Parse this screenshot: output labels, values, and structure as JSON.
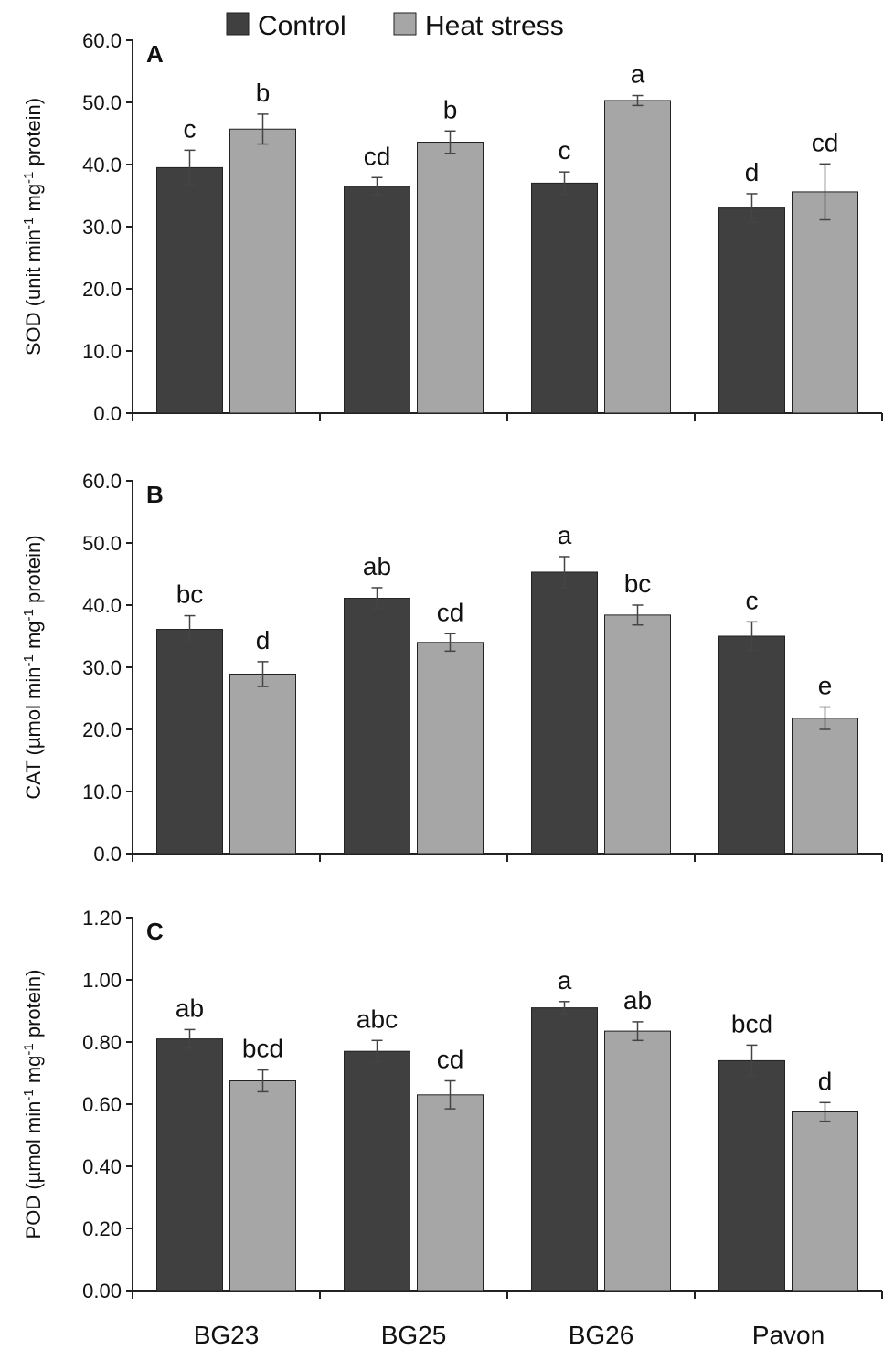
{
  "legend": {
    "items": [
      {
        "label": "Control",
        "color": "#404040"
      },
      {
        "label": "Heat stress",
        "color": "#a6a6a6"
      }
    ]
  },
  "chart_data": [
    {
      "type": "bar",
      "panel": "A",
      "categories": [
        "BG23",
        "BG25",
        "BG26",
        "Pavon"
      ],
      "ylabel_main": "SOD (unit min",
      "ylabel_sup1": "-1",
      "ylabel_mid": " mg",
      "ylabel_sup2": "-1",
      "ylabel_end": " protein)",
      "ylim": [
        0,
        60
      ],
      "yticks": [
        "0.0",
        "10.0",
        "20.0",
        "30.0",
        "40.0",
        "50.0",
        "60.0"
      ],
      "ytick_values": [
        0,
        10,
        20,
        30,
        40,
        50,
        60
      ],
      "series": [
        {
          "name": "Control",
          "color": "#404040",
          "values": [
            39.5,
            36.5,
            37.0,
            33.0
          ],
          "errors": [
            2.8,
            1.4,
            1.8,
            2.3
          ],
          "letters": [
            "c",
            "cd",
            "c",
            "d"
          ]
        },
        {
          "name": "Heat stress",
          "color": "#a6a6a6",
          "values": [
            45.7,
            43.6,
            50.3,
            35.6
          ],
          "errors": [
            2.4,
            1.8,
            0.8,
            4.5
          ],
          "letters": [
            "b",
            "b",
            "a",
            "cd"
          ]
        }
      ]
    },
    {
      "type": "bar",
      "panel": "B",
      "categories": [
        "BG23",
        "BG25",
        "BG26",
        "Pavon"
      ],
      "ylabel_main": "CAT (µmol min",
      "ylabel_sup1": "-1",
      "ylabel_mid": " mg",
      "ylabel_sup2": "-1",
      "ylabel_end": " protein)",
      "ylim": [
        0,
        60
      ],
      "yticks": [
        "0.0",
        "10.0",
        "20.0",
        "30.0",
        "40.0",
        "50.0",
        "60.0"
      ],
      "ytick_values": [
        0,
        10,
        20,
        30,
        40,
        50,
        60
      ],
      "series": [
        {
          "name": "Control",
          "color": "#404040",
          "values": [
            36.1,
            41.1,
            45.3,
            35.0
          ],
          "errors": [
            2.2,
            1.7,
            2.5,
            2.3
          ],
          "letters": [
            "bc",
            "ab",
            "a",
            "c"
          ]
        },
        {
          "name": "Heat stress",
          "color": "#a6a6a6",
          "values": [
            28.9,
            34.0,
            38.4,
            21.8
          ],
          "errors": [
            2.0,
            1.4,
            1.6,
            1.8
          ],
          "letters": [
            "d",
            "cd",
            "bc",
            "e"
          ]
        }
      ]
    },
    {
      "type": "bar",
      "panel": "C",
      "categories": [
        "BG23",
        "BG25",
        "BG26",
        "Pavon"
      ],
      "ylabel_main": "POD (µmol min",
      "ylabel_sup1": "-1",
      "ylabel_mid": " mg",
      "ylabel_sup2": "-1",
      "ylabel_end": " protein)",
      "ylim": [
        0,
        1.2
      ],
      "yticks": [
        "0.00",
        "0.20",
        "0.40",
        "0.60",
        "0.80",
        "1.00",
        "1.20"
      ],
      "ytick_values": [
        0,
        0.2,
        0.4,
        0.6,
        0.8,
        1.0,
        1.2
      ],
      "series": [
        {
          "name": "Control",
          "color": "#404040",
          "values": [
            0.81,
            0.77,
            0.91,
            0.74
          ],
          "errors": [
            0.03,
            0.035,
            0.02,
            0.05
          ],
          "letters": [
            "ab",
            "abc",
            "a",
            "bcd"
          ]
        },
        {
          "name": "Heat stress",
          "color": "#a6a6a6",
          "values": [
            0.675,
            0.63,
            0.835,
            0.575
          ],
          "errors": [
            0.035,
            0.045,
            0.03,
            0.03
          ],
          "letters": [
            "bcd",
            "cd",
            "ab",
            "d"
          ]
        }
      ]
    }
  ]
}
